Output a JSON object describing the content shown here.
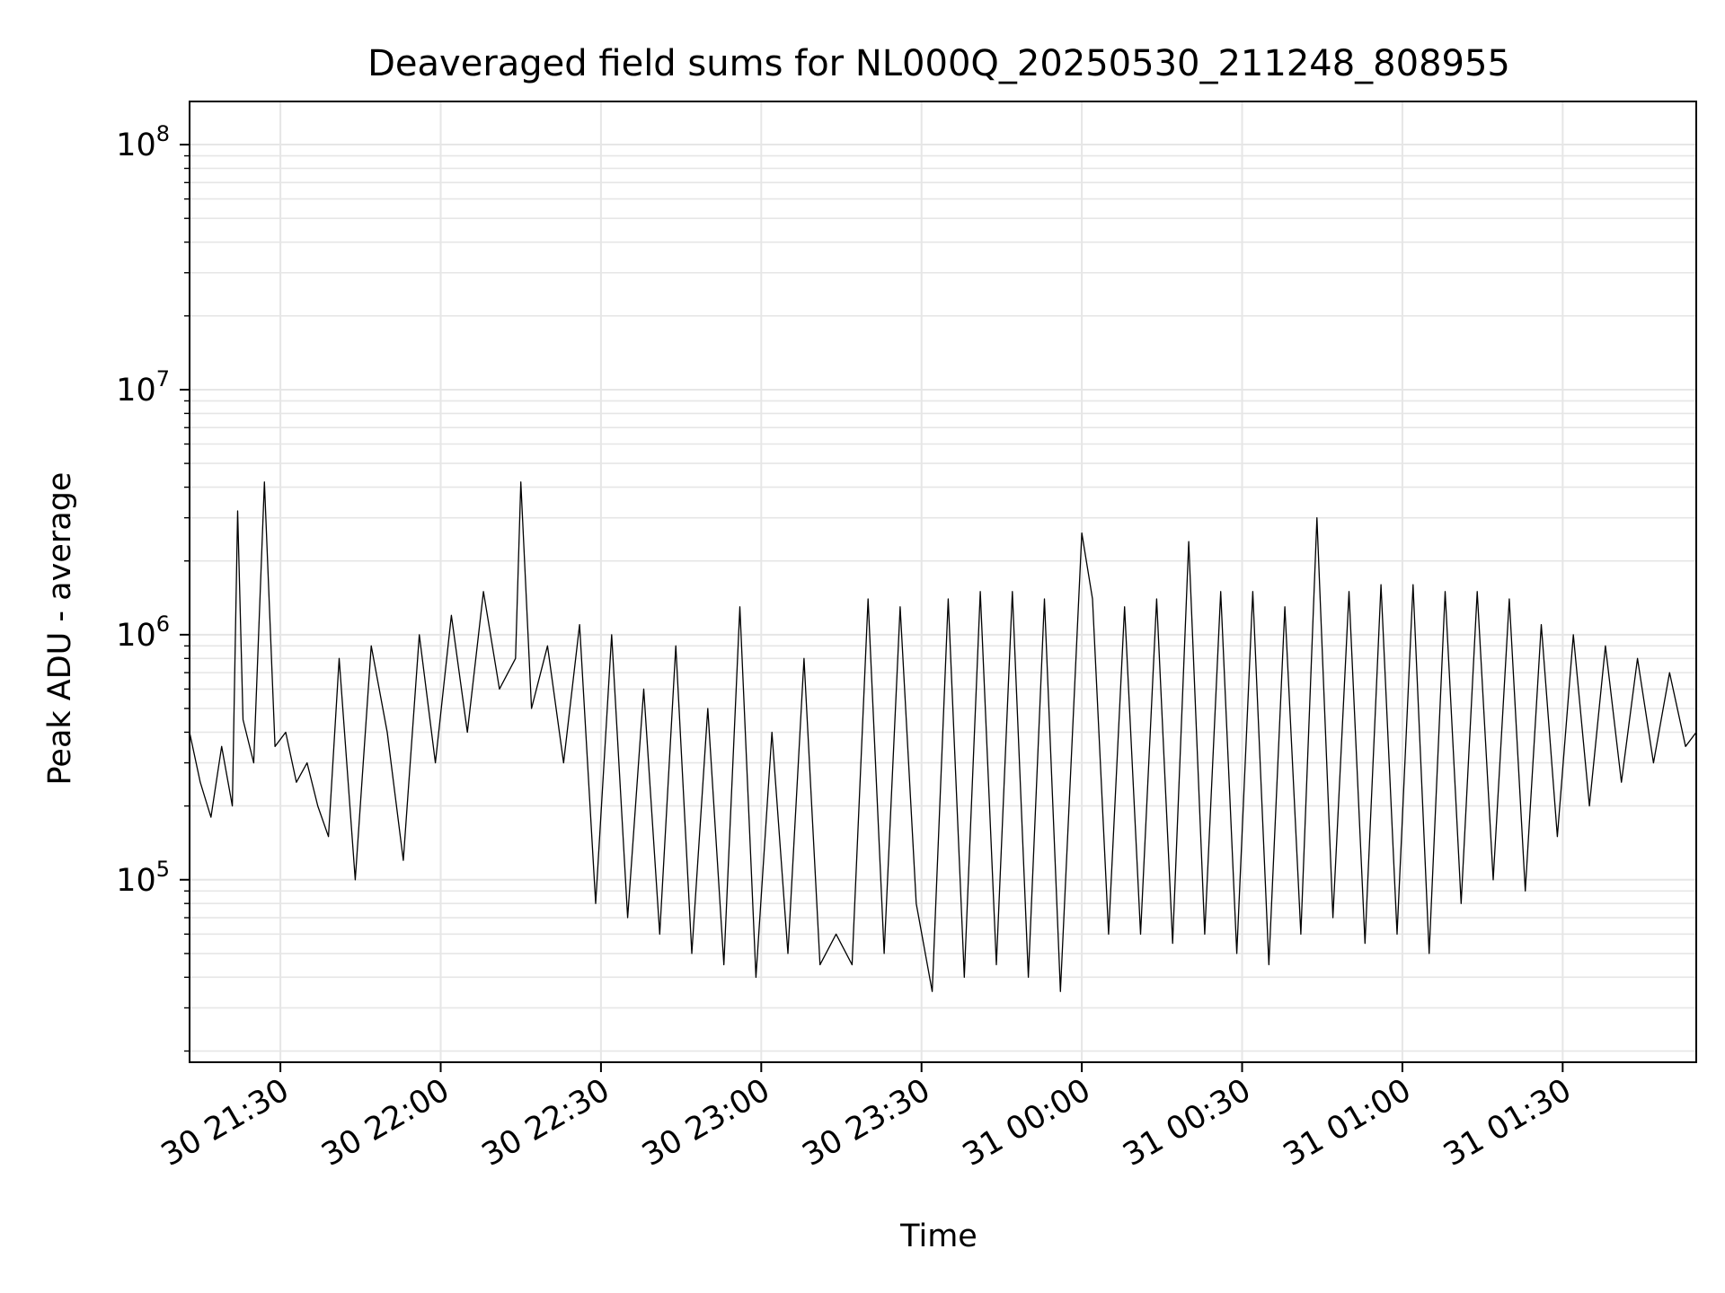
{
  "chart_data": {
    "type": "line",
    "title": "Deaveraged field sums for NL000Q_20250530_211248_808955",
    "xlabel": "Time",
    "ylabel": "Peak ADU - average",
    "xlim": [
      "2025-05-30 21:13",
      "2025-05-31 01:55"
    ],
    "ylim": [
      18000,
      150000000
    ],
    "yscale": "log",
    "grid": true,
    "line_color": "#000000",
    "grid_color": "#e6e6e6",
    "x_ticks": [
      {
        "value": "2025-05-30 21:30",
        "label": "30 21:30"
      },
      {
        "value": "2025-05-30 22:00",
        "label": "30 22:00"
      },
      {
        "value": "2025-05-30 22:30",
        "label": "30 22:30"
      },
      {
        "value": "2025-05-30 23:00",
        "label": "30 23:00"
      },
      {
        "value": "2025-05-30 23:30",
        "label": "30 23:30"
      },
      {
        "value": "2025-05-31 00:00",
        "label": "31 00:00"
      },
      {
        "value": "2025-05-31 00:30",
        "label": "31 00:30"
      },
      {
        "value": "2025-05-31 01:00",
        "label": "31 01:00"
      },
      {
        "value": "2025-05-31 01:30",
        "label": "31 01:30"
      }
    ],
    "y_ticks": [
      {
        "value": 100000,
        "base": "10",
        "exp": "5"
      },
      {
        "value": 1000000,
        "base": "10",
        "exp": "6"
      },
      {
        "value": 10000000,
        "base": "10",
        "exp": "7"
      },
      {
        "value": 100000000,
        "base": "10",
        "exp": "8"
      }
    ],
    "series": [
      {
        "x": [
          "2025-05-30 21:13",
          "2025-05-30 21:15",
          "2025-05-30 21:17",
          "2025-05-30 21:19",
          "2025-05-30 21:21",
          "2025-05-30 21:22",
          "2025-05-30 21:23",
          "2025-05-30 21:25",
          "2025-05-30 21:27",
          "2025-05-30 21:29",
          "2025-05-30 21:31",
          "2025-05-30 21:33",
          "2025-05-30 21:35",
          "2025-05-30 21:37",
          "2025-05-30 21:39",
          "2025-05-30 21:41",
          "2025-05-30 21:44",
          "2025-05-30 21:47",
          "2025-05-30 21:50",
          "2025-05-30 21:53",
          "2025-05-30 21:56",
          "2025-05-30 21:59",
          "2025-05-30 22:02",
          "2025-05-30 22:05",
          "2025-05-30 22:08",
          "2025-05-30 22:11",
          "2025-05-30 22:14",
          "2025-05-30 22:15",
          "2025-05-30 22:17",
          "2025-05-30 22:20",
          "2025-05-30 22:23",
          "2025-05-30 22:26",
          "2025-05-30 22:29",
          "2025-05-30 22:32",
          "2025-05-30 22:35",
          "2025-05-30 22:38",
          "2025-05-30 22:41",
          "2025-05-30 22:44",
          "2025-05-30 22:47",
          "2025-05-30 22:50",
          "2025-05-30 22:53",
          "2025-05-30 22:56",
          "2025-05-30 22:59",
          "2025-05-30 23:02",
          "2025-05-30 23:05",
          "2025-05-30 23:08",
          "2025-05-30 23:11",
          "2025-05-30 23:14",
          "2025-05-30 23:17",
          "2025-05-30 23:20",
          "2025-05-30 23:23",
          "2025-05-30 23:26",
          "2025-05-30 23:29",
          "2025-05-30 23:32",
          "2025-05-30 23:35",
          "2025-05-30 23:38",
          "2025-05-30 23:41",
          "2025-05-30 23:44",
          "2025-05-30 23:47",
          "2025-05-30 23:50",
          "2025-05-30 23:53",
          "2025-05-30 23:56",
          "2025-05-31 00:00",
          "2025-05-31 00:02",
          "2025-05-31 00:05",
          "2025-05-31 00:08",
          "2025-05-31 00:11",
          "2025-05-31 00:14",
          "2025-05-31 00:17",
          "2025-05-31 00:20",
          "2025-05-31 00:23",
          "2025-05-31 00:26",
          "2025-05-31 00:29",
          "2025-05-31 00:32",
          "2025-05-31 00:35",
          "2025-05-31 00:38",
          "2025-05-31 00:41",
          "2025-05-31 00:44",
          "2025-05-31 00:47",
          "2025-05-31 00:50",
          "2025-05-31 00:53",
          "2025-05-31 00:56",
          "2025-05-31 00:59",
          "2025-05-31 01:02",
          "2025-05-31 01:05",
          "2025-05-31 01:08",
          "2025-05-31 01:11",
          "2025-05-31 01:14",
          "2025-05-31 01:17",
          "2025-05-31 01:20",
          "2025-05-31 01:23",
          "2025-05-31 01:26",
          "2025-05-31 01:29",
          "2025-05-31 01:32",
          "2025-05-31 01:35",
          "2025-05-31 01:38",
          "2025-05-31 01:41",
          "2025-05-31 01:44",
          "2025-05-31 01:47",
          "2025-05-31 01:50",
          "2025-05-31 01:53",
          "2025-05-31 01:55"
        ],
        "y": [
          400000,
          250000,
          180000,
          350000,
          200000,
          3200000,
          450000,
          300000,
          4200000,
          350000,
          400000,
          250000,
          300000,
          200000,
          150000,
          800000,
          100000,
          900000,
          400000,
          120000,
          1000000,
          300000,
          1200000,
          400000,
          1500000,
          600000,
          800000,
          4200000,
          500000,
          900000,
          300000,
          1100000,
          80000,
          1000000,
          70000,
          600000,
          60000,
          900000,
          50000,
          500000,
          45000,
          1300000,
          40000,
          400000,
          50000,
          800000,
          45000,
          60000,
          45000,
          1400000,
          50000,
          1300000,
          80000,
          35000,
          1400000,
          40000,
          1500000,
          45000,
          1500000,
          40000,
          1400000,
          35000,
          2600000,
          1400000,
          60000,
          1300000,
          60000,
          1400000,
          55000,
          2400000,
          60000,
          1500000,
          50000,
          1500000,
          45000,
          1300000,
          60000,
          3000000,
          70000,
          1500000,
          55000,
          1600000,
          60000,
          1600000,
          50000,
          1500000,
          80000,
          1500000,
          100000,
          1400000,
          90000,
          1100000,
          150000,
          1000000,
          200000,
          900000,
          250000,
          800000,
          300000,
          700000,
          350000,
          400000
        ]
      }
    ]
  }
}
